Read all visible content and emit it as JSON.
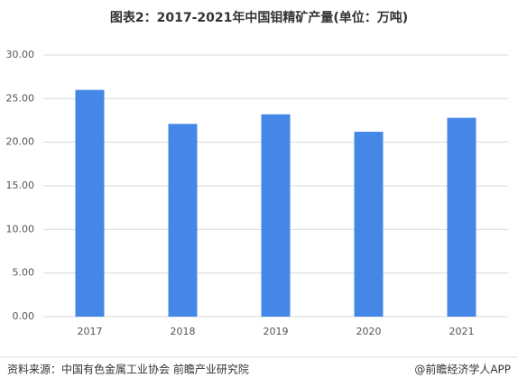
{
  "chart_data": {
    "type": "bar",
    "title": "图表2：2017-2021年中国钼精矿产量(单位：万吨)",
    "categories": [
      "2017",
      "2018",
      "2019",
      "2020",
      "2021"
    ],
    "values": [
      26.0,
      22.1,
      23.2,
      21.2,
      22.8
    ],
    "color": "#4587e6",
    "ylim": [
      0,
      30
    ],
    "yticks": [
      {
        "value": 0,
        "label": "0.00"
      },
      {
        "value": 5,
        "label": "5.00"
      },
      {
        "value": 10,
        "label": "10.00"
      },
      {
        "value": 15,
        "label": "15.00"
      },
      {
        "value": 20,
        "label": "20.00"
      },
      {
        "value": 25,
        "label": "25.00"
      },
      {
        "value": 30,
        "label": "30.00"
      }
    ],
    "grid": true
  },
  "footer": {
    "source": "资料来源：中国有色金属工业协会 前瞻产业研究院",
    "credit": "@前瞻经济学人APP"
  }
}
